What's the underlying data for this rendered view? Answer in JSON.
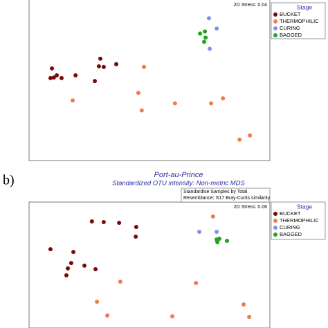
{
  "chart_data": [
    {
      "type": "scatter",
      "annotation": "2D Stress: 0.04",
      "legend_title": "Stage",
      "xlim": [
        0,
        100
      ],
      "ylim": [
        0,
        100
      ],
      "series": [
        {
          "name": "BUCKET",
          "color": "#7a0a0a",
          "x": [
            9.5,
            10.3,
            8.9,
            11.5,
            13.5,
            19.3,
            27.3,
            29.6,
            29.0,
            31.0,
            36.2
          ],
          "values": [
            56.9,
            51.3,
            50.9,
            52.6,
            50.9,
            52.6,
            49.1,
            62.9,
            58.2,
            57.8,
            59.5
          ]
        },
        {
          "name": "THERMOPHILIC",
          "color": "#ef7b4c",
          "x": [
            47.7,
            45.4,
            46.8,
            60.6,
            75.6,
            80.5,
            87.4,
            91.7,
            18.1
          ],
          "values": [
            57.8,
            41.8,
            31.0,
            35.3,
            35.3,
            38.4,
            12.9,
            15.5,
            37.1
          ]
        },
        {
          "name": "CURING",
          "color": "#7f8fe6",
          "x": [
            74.7,
            77.9,
            75.0
          ],
          "values": [
            87.9,
            81.5,
            69.0
          ]
        },
        {
          "name": "BAGGED",
          "color": "#1ea51e",
          "x": [
            71.0,
            73.0,
            73.3,
            72.7
          ],
          "values": [
            78.4,
            79.7,
            75.9,
            73.3
          ]
        }
      ]
    },
    {
      "type": "scatter",
      "label": "b)",
      "title": "Port-au-Prince",
      "subtitle": "Standardized OTU intensity: Non-metric MDS",
      "notes": [
        "Standardise Samples by Total",
        "Resemblance: S17 Bray-Curtis similarity"
      ],
      "annotation": "2D Stress: 0.06",
      "legend_title": "Stage",
      "xlim": [
        0,
        100
      ],
      "ylim": [
        0,
        100
      ],
      "series": [
        {
          "name": "BUCKET",
          "color": "#7a0a0a",
          "x": [
            8.9,
            15.5,
            16.1,
            17.5,
            18.4,
            23.0,
            26.1,
            31.0,
            37.4,
            44.5,
            44.3,
            27.6
          ],
          "values": [
            62.6,
            41.8,
            47.3,
            51.6,
            60.4,
            49.5,
            84.6,
            84.1,
            83.5,
            80.2,
            72.5,
            46.7
          ]
        },
        {
          "name": "THERMOPHILIC",
          "color": "#ef7b4c",
          "x": [
            37.9,
            28.2,
            32.5,
            69.3,
            59.5,
            76.4,
            89.1,
            91.4
          ],
          "values": [
            36.8,
            20.9,
            9.9,
            35.7,
            9.3,
            88.5,
            18.7,
            8.8
          ]
        },
        {
          "name": "CURING",
          "color": "#7f8fe6",
          "x": [
            70.7,
            77.9
          ],
          "values": [
            76.4,
            76.4
          ]
        },
        {
          "name": "BAGGED",
          "color": "#1ea51e",
          "x": [
            78.2,
            79.0,
            82.2,
            77.9
          ],
          "values": [
            68.1,
            70.9,
            69.2,
            70.3
          ]
        }
      ]
    }
  ]
}
